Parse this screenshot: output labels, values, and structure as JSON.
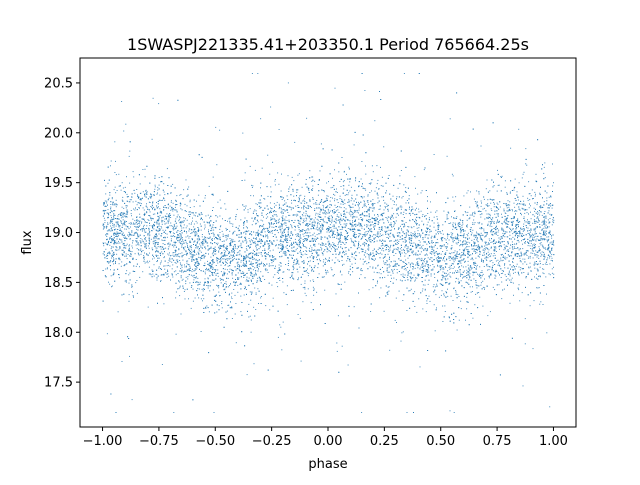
{
  "chart_data": {
    "type": "scatter",
    "title": "1SWASPJ221335.41+203350.1 Period 765664.25s",
    "xlabel": "phase",
    "ylabel": "flux",
    "xlim": [
      -1.1,
      1.1
    ],
    "ylim": [
      17.05,
      20.75
    ],
    "x_ticks": [
      -1.0,
      -0.75,
      -0.5,
      -0.25,
      0.0,
      0.25,
      0.5,
      0.75,
      1.0
    ],
    "x_tick_labels": [
      "−1.00",
      "−0.75",
      "−0.50",
      "−0.25",
      "0.00",
      "0.25",
      "0.50",
      "0.75",
      "1.00"
    ],
    "y_ticks": [
      17.5,
      18.0,
      18.5,
      19.0,
      19.5,
      20.0,
      20.5
    ],
    "y_tick_labels": [
      "17.5",
      "18.0",
      "18.5",
      "19.0",
      "19.5",
      "20.0",
      "20.5"
    ],
    "grid": false,
    "marker_color": "#1f77b4",
    "series": [
      {
        "phase_range": [
          -1.0,
          1.0
        ],
        "flux_profile": {
          "phase": [
            -1.0,
            -0.75,
            -0.6,
            -0.5,
            -0.4,
            -0.25,
            -0.1,
            0.0,
            0.1,
            0.25,
            0.4,
            0.5,
            0.6,
            0.75,
            0.9,
            1.0
          ],
          "median_flux": [
            19.0,
            19.05,
            18.85,
            18.72,
            18.75,
            18.95,
            19.0,
            19.0,
            19.05,
            19.0,
            18.85,
            18.72,
            18.75,
            18.95,
            19.0,
            19.0
          ]
        },
        "scatter_core": 0.25,
        "flux_range": [
          17.2,
          20.6
        ]
      }
    ]
  }
}
